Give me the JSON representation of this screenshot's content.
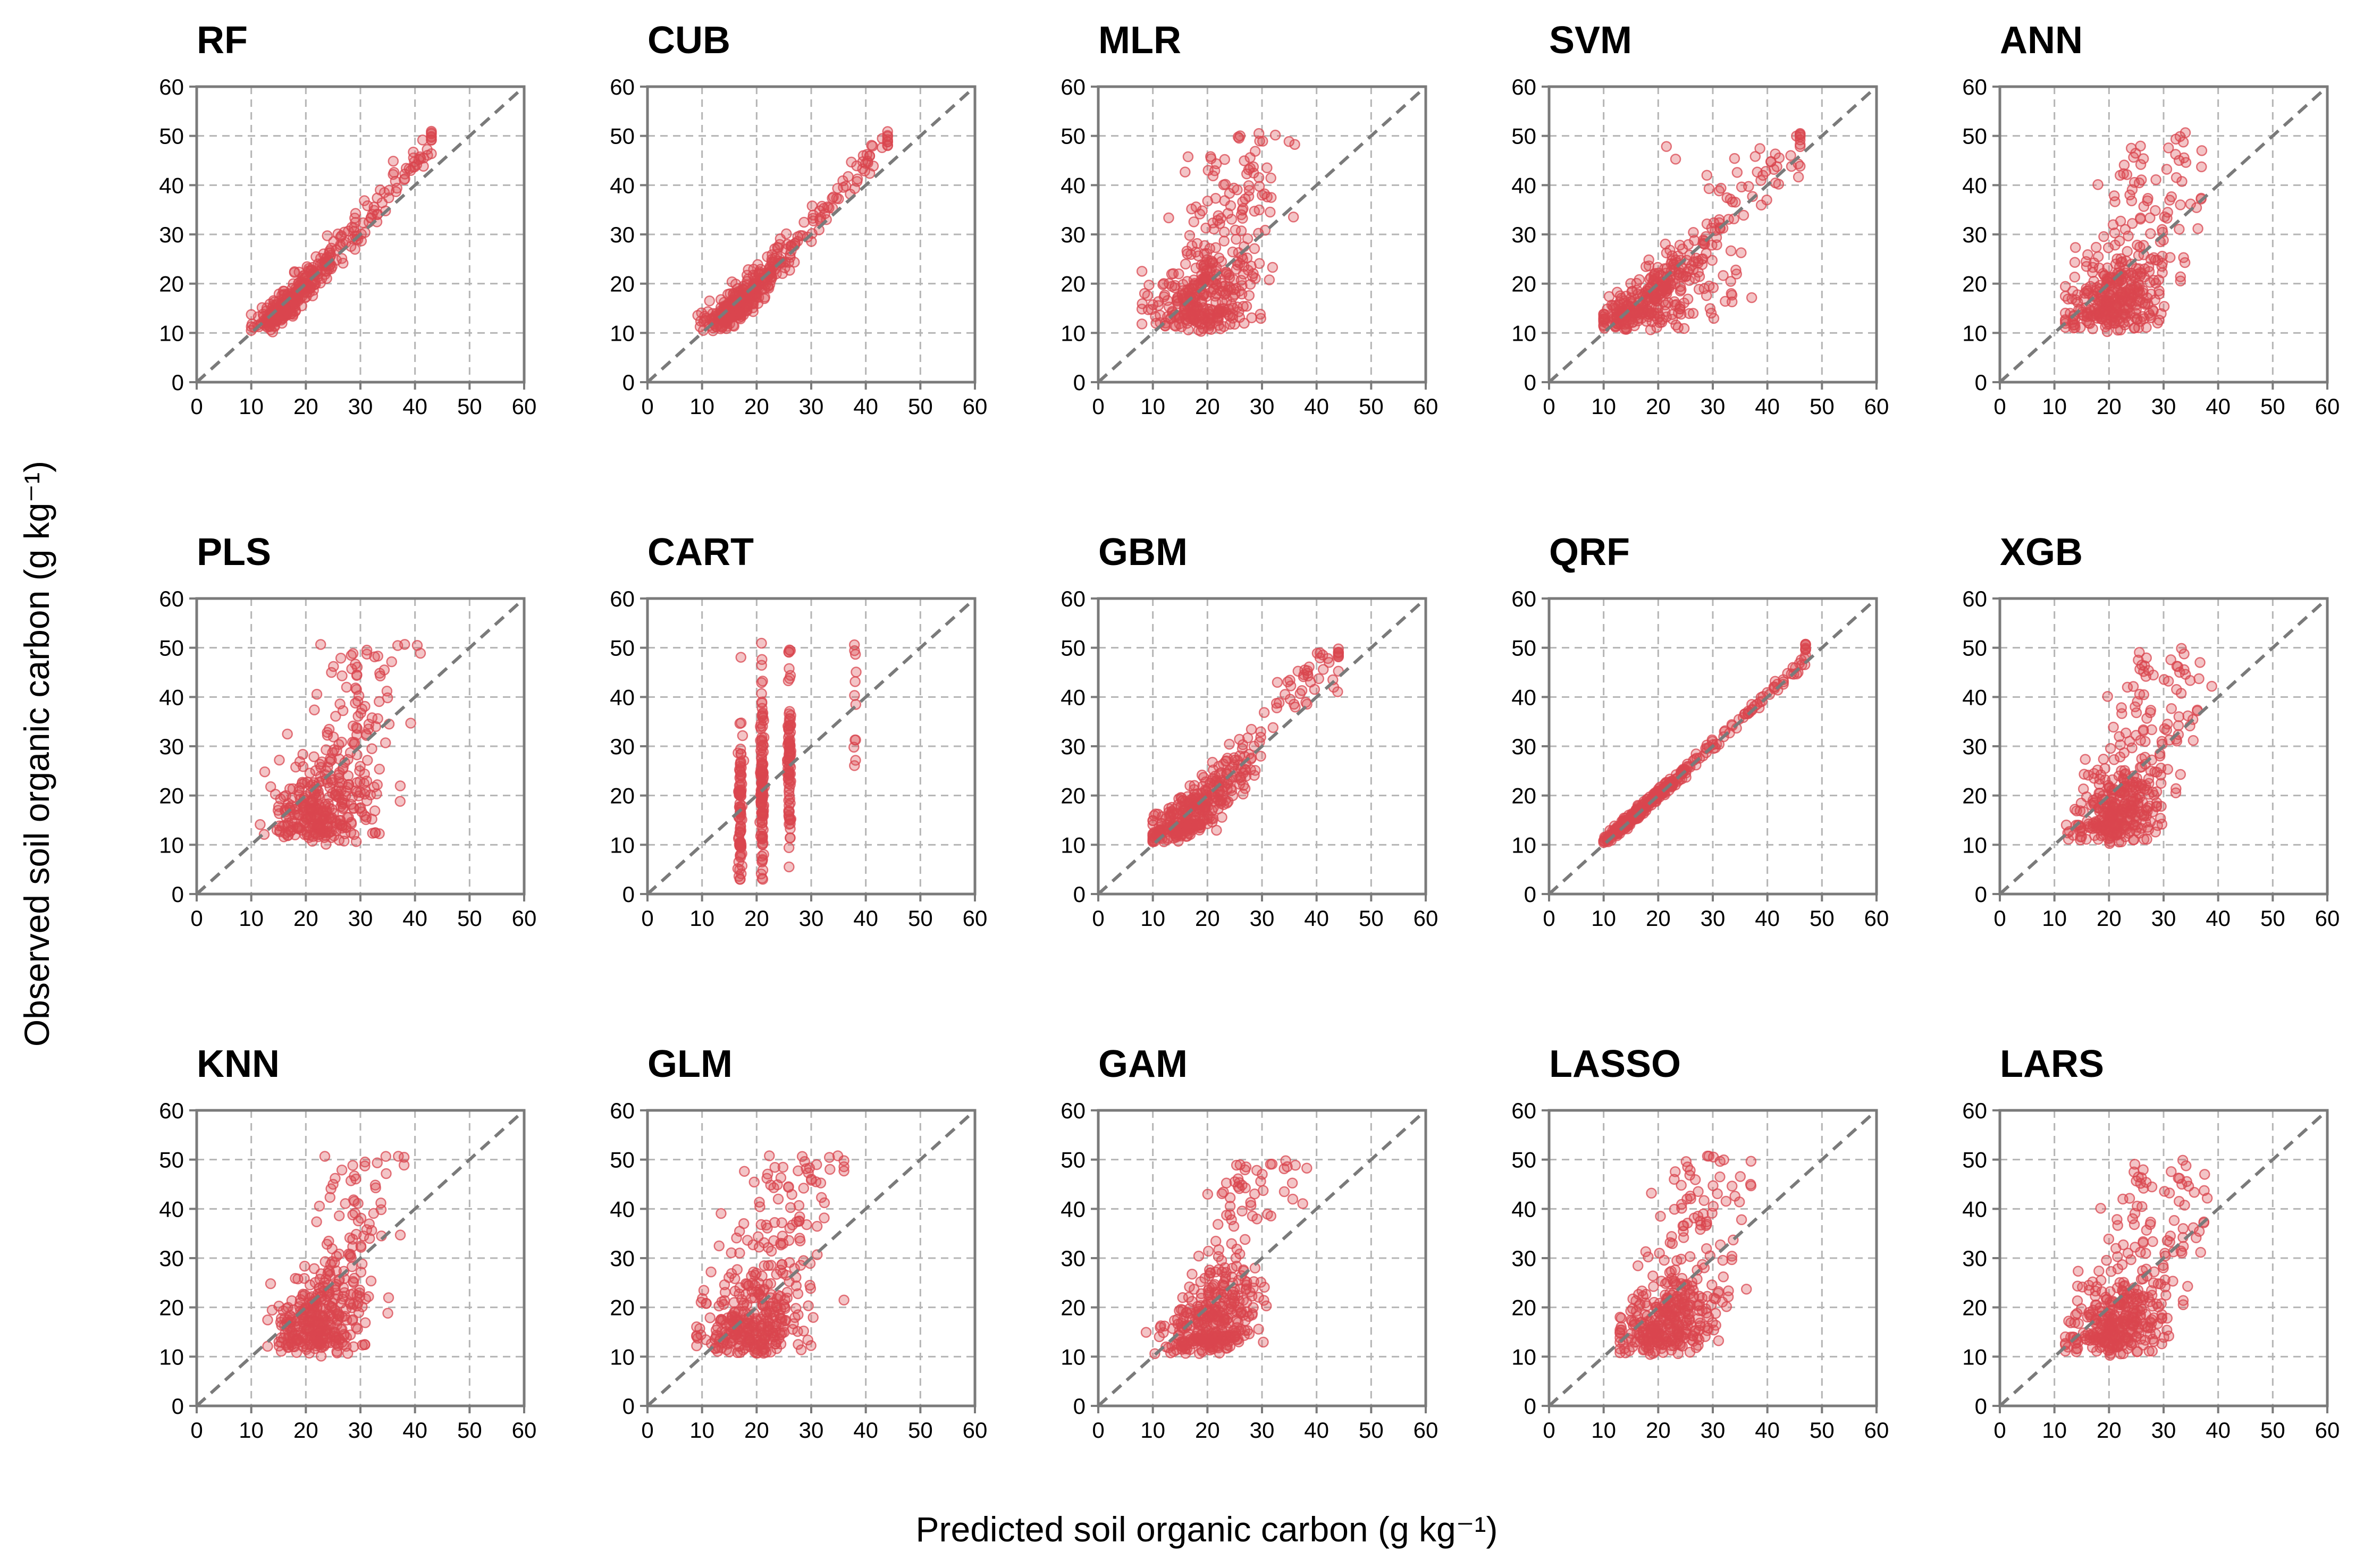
{
  "figure": {
    "y_axis_title": "Observed soil organic carbon (g kg⁻¹)",
    "x_axis_title": "Predicted soil organic carbon (g kg⁻¹)",
    "point_color": "#d9464f",
    "diagonal_color": "#7a7a7a",
    "grid_color": "#b5b5b5",
    "axis_color": "#7a7a7a"
  },
  "chart_data": {
    "type": "scatter",
    "xlim": [
      0,
      60
    ],
    "ylim": [
      0,
      60
    ],
    "ticks": [
      0,
      10,
      20,
      30,
      40,
      50,
      60
    ],
    "grid": true,
    "reference_line": "1:1 dashed",
    "panels": [
      {
        "title": "RF",
        "pattern": "fit",
        "x_range": [
          10,
          43
        ],
        "spread": 2.5
      },
      {
        "title": "CUB",
        "pattern": "fit",
        "x_range": [
          9,
          44
        ],
        "spread": 3
      },
      {
        "title": "MLR",
        "pattern": "scatter",
        "x_range": [
          8,
          36
        ],
        "spread": 8
      },
      {
        "title": "SVM",
        "pattern": "svm",
        "x_range": [
          10,
          46
        ],
        "spread": 5
      },
      {
        "title": "ANN",
        "pattern": "scatter",
        "x_range": [
          12,
          37
        ],
        "spread": 8
      },
      {
        "title": "PLS",
        "pattern": "scatter",
        "x_range": [
          11,
          41
        ],
        "spread": 8
      },
      {
        "title": "CART",
        "pattern": "cart",
        "x_values": [
          17,
          21,
          26,
          38
        ]
      },
      {
        "title": "GBM",
        "pattern": "fit",
        "x_range": [
          10,
          44
        ],
        "spread": 4.5
      },
      {
        "title": "QRF",
        "pattern": "line",
        "x_range": [
          10,
          47
        ],
        "spread": 0.6
      },
      {
        "title": "XGB",
        "pattern": "scatter",
        "x_range": [
          10,
          40
        ],
        "spread": 7
      },
      {
        "title": "KNN",
        "pattern": "scatter",
        "x_range": [
          13,
          38
        ],
        "spread": 7
      },
      {
        "title": "GLM",
        "pattern": "scatter",
        "x_range": [
          9,
          36
        ],
        "spread": 8
      },
      {
        "title": "GAM",
        "pattern": "scatter",
        "x_range": [
          6,
          42
        ],
        "spread": 7
      },
      {
        "title": "LASSO",
        "pattern": "scatter",
        "x_range": [
          13,
          37
        ],
        "spread": 8
      },
      {
        "title": "LARS",
        "pattern": "scatter",
        "x_range": [
          12,
          38
        ],
        "spread": 8
      }
    ]
  }
}
